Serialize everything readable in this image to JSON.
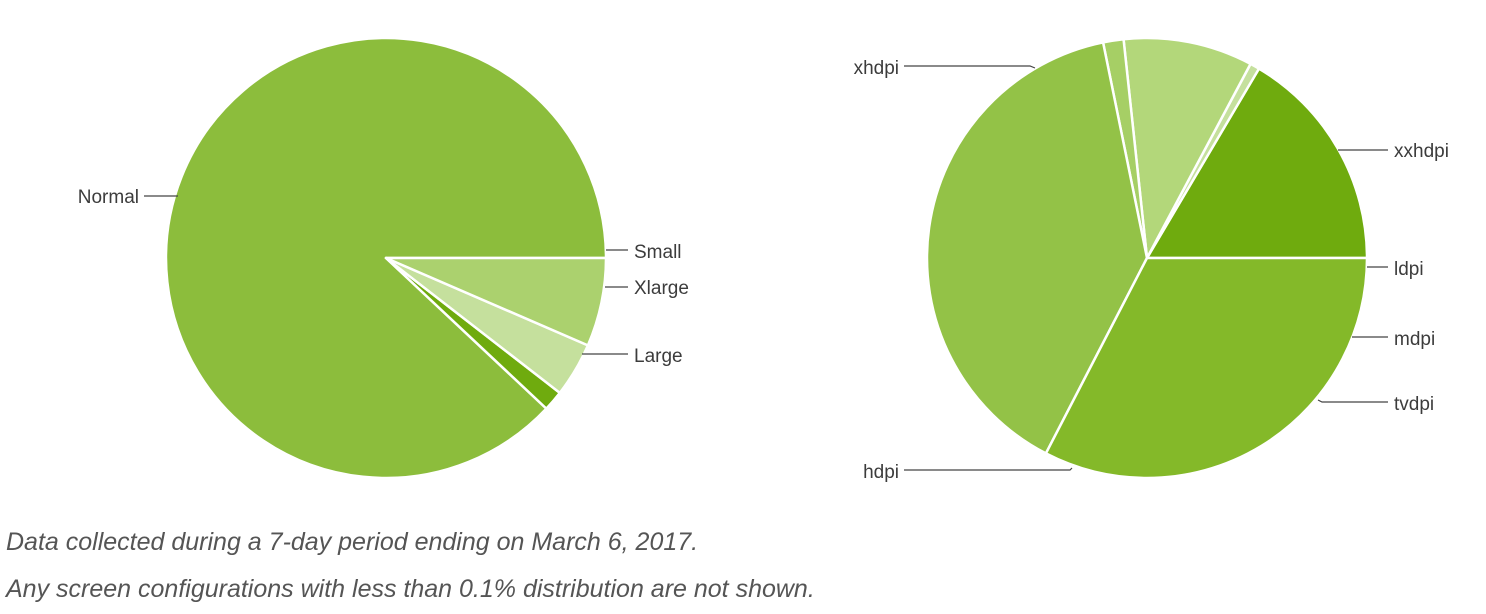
{
  "colors": {
    "base": "#8cbd3c",
    "slices_screen_size": [
      "#8cbd3c",
      "#6fab0e",
      "#c5e09d",
      "#abd16e"
    ],
    "slices_density": [
      "#6fab0e",
      "#c5e09d",
      "#b3d77a",
      "#a6cf65",
      "#93c247",
      "#84b929"
    ]
  },
  "chart_data": [
    {
      "type": "pie",
      "title": "",
      "start": "3 o'clock, counter-clockwise",
      "slices": [
        {
          "label": "Normal",
          "value": 88.0
        },
        {
          "label": "Small",
          "value": 1.5
        },
        {
          "label": "Xlarge",
          "value": 4.0
        },
        {
          "label": "Large",
          "value": 6.5
        }
      ]
    },
    {
      "type": "pie",
      "title": "",
      "start": "3 o'clock, counter-clockwise",
      "slices": [
        {
          "label": "xxhdpi",
          "value": 16.5
        },
        {
          "label": "ldpi",
          "value": 0.7
        },
        {
          "label": "mdpi",
          "value": 9.5
        },
        {
          "label": "tvdpi",
          "value": 1.5
        },
        {
          "label": "hdpi",
          "value": 39.2
        },
        {
          "label": "xhdpi",
          "value": 32.6
        }
      ]
    }
  ],
  "notes": [
    "Data collected during a 7-day period ending on March 6, 2017.",
    "Any screen configurations with less than 0.1% distribution are not shown."
  ]
}
